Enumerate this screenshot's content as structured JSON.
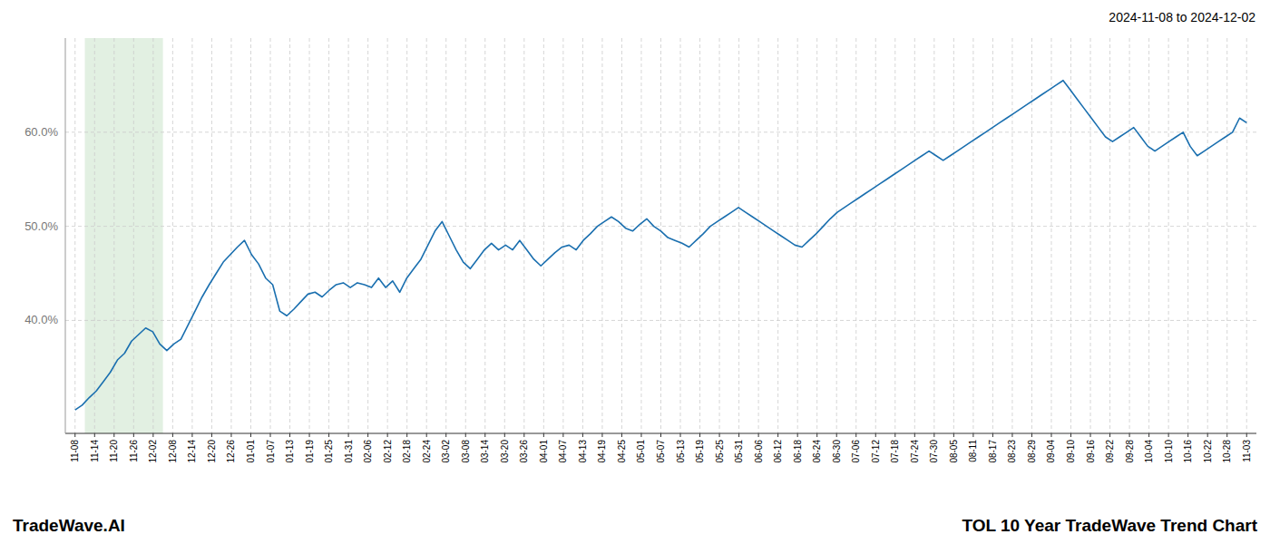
{
  "chart_data": {
    "type": "line",
    "title": "TOL 10 Year TradeWave Trend Chart",
    "subtitle": "2024-11-08 to 2024-12-02",
    "annotations": [
      "TradeWave.AI"
    ],
    "color": "#1a6faf",
    "grid": true,
    "line_style": "solid",
    "highlight": {
      "x": [
        1,
        4
      ],
      "color": "#d6ead6"
    },
    "xlim": [
      -0.5,
      60.5
    ],
    "xticks": [
      {
        "value": 0,
        "label": "11-08"
      },
      {
        "value": 1,
        "label": "11-14"
      },
      {
        "value": 2,
        "label": "11-20"
      },
      {
        "value": 3,
        "label": "11-26"
      },
      {
        "value": 4,
        "label": "12-02"
      },
      {
        "value": 5,
        "label": "12-08"
      },
      {
        "value": 6,
        "label": "12-14"
      },
      {
        "value": 7,
        "label": "12-20"
      },
      {
        "value": 8,
        "label": "12-26"
      },
      {
        "value": 9,
        "label": "01-01"
      },
      {
        "value": 10,
        "label": "01-07"
      },
      {
        "value": 11,
        "label": "01-13"
      },
      {
        "value": 12,
        "label": "01-19"
      },
      {
        "value": 13,
        "label": "01-25"
      },
      {
        "value": 14,
        "label": "01-31"
      },
      {
        "value": 15,
        "label": "02-06"
      },
      {
        "value": 16,
        "label": "02-12"
      },
      {
        "value": 17,
        "label": "02-18"
      },
      {
        "value": 18,
        "label": "02-24"
      },
      {
        "value": 19,
        "label": "03-02"
      },
      {
        "value": 20,
        "label": "03-08"
      },
      {
        "value": 21,
        "label": "03-14"
      },
      {
        "value": 22,
        "label": "03-20"
      },
      {
        "value": 23,
        "label": "03-26"
      },
      {
        "value": 24,
        "label": "04-01"
      },
      {
        "value": 25,
        "label": "04-07"
      },
      {
        "value": 26,
        "label": "04-13"
      },
      {
        "value": 27,
        "label": "04-19"
      },
      {
        "value": 28,
        "label": "04-25"
      },
      {
        "value": 29,
        "label": "05-01"
      },
      {
        "value": 30,
        "label": "05-07"
      },
      {
        "value": 31,
        "label": "05-13"
      },
      {
        "value": 32,
        "label": "05-19"
      },
      {
        "value": 33,
        "label": "05-25"
      },
      {
        "value": 34,
        "label": "05-31"
      },
      {
        "value": 35,
        "label": "06-06"
      },
      {
        "value": 36,
        "label": "06-12"
      },
      {
        "value": 37,
        "label": "06-18"
      },
      {
        "value": 38,
        "label": "06-24"
      },
      {
        "value": 39,
        "label": "06-30"
      },
      {
        "value": 40,
        "label": "07-06"
      },
      {
        "value": 41,
        "label": "07-12"
      },
      {
        "value": 42,
        "label": "07-18"
      },
      {
        "value": 43,
        "label": "07-24"
      },
      {
        "value": 44,
        "label": "07-30"
      },
      {
        "value": 45,
        "label": "08-05"
      },
      {
        "value": 46,
        "label": "08-11"
      },
      {
        "value": 47,
        "label": "08-17"
      },
      {
        "value": 48,
        "label": "08-23"
      },
      {
        "value": 49,
        "label": "08-29"
      },
      {
        "value": 50,
        "label": "09-04"
      },
      {
        "value": 51,
        "label": "09-10"
      },
      {
        "value": 52,
        "label": "09-16"
      },
      {
        "value": 53,
        "label": "09-22"
      },
      {
        "value": 54,
        "label": "09-28"
      },
      {
        "value": 55,
        "label": "10-04"
      },
      {
        "value": 56,
        "label": "10-10"
      },
      {
        "value": 57,
        "label": "10-16"
      },
      {
        "value": 58,
        "label": "10-22"
      },
      {
        "value": 59,
        "label": "10-28"
      },
      {
        "value": 60,
        "label": "11-03"
      }
    ],
    "ylim": [
      28,
      70
    ],
    "yticks": [
      {
        "value": 40.0,
        "label": "40.0%"
      },
      {
        "value": 50.0,
        "label": "50.0%"
      },
      {
        "value": 60.0,
        "label": "60.0%"
      }
    ],
    "values": [
      30.5,
      31.0,
      31.8,
      32.5,
      33.5,
      34.5,
      35.8,
      36.5,
      37.8,
      38.5,
      39.2,
      38.8,
      37.5,
      36.8,
      37.5,
      38.0,
      39.5,
      41.0,
      42.5,
      43.8,
      45.0,
      46.2,
      47.0,
      47.8,
      48.5,
      47.0,
      46.0,
      44.5,
      43.8,
      41.0,
      40.5,
      41.2,
      42.0,
      42.8,
      43.0,
      42.5,
      43.2,
      43.8,
      44.0,
      43.5,
      44.0,
      43.8,
      43.5,
      44.5,
      43.5,
      44.2,
      43.0,
      44.5,
      45.5,
      46.5,
      48.0,
      49.5,
      50.5,
      49.0,
      47.5,
      46.2,
      45.5,
      46.5,
      47.5,
      48.2,
      47.5,
      48.0,
      47.5,
      48.5,
      47.5,
      46.5,
      45.8,
      46.5,
      47.2,
      47.8,
      48.0,
      47.5,
      48.5,
      49.2,
      50.0,
      50.5,
      51.0,
      50.5,
      49.8,
      49.5,
      50.2,
      50.8,
      50.0,
      49.5,
      48.8,
      48.5,
      48.2,
      47.8,
      48.5,
      49.2,
      50.0,
      50.5,
      51.0,
      51.5,
      52.0,
      51.5,
      51.0,
      50.5,
      50.0,
      49.5,
      49.0,
      48.5,
      48.0,
      47.8,
      48.5,
      49.2,
      50.0,
      50.8,
      51.5,
      52.0,
      52.5,
      53.0,
      53.5,
      54.0,
      54.5,
      55.0,
      55.5,
      56.0,
      56.5,
      57.0,
      57.5,
      58.0,
      57.5,
      57.0,
      57.5,
      58.0,
      58.5,
      59.0,
      59.5,
      60.0,
      60.5,
      61.0,
      61.5,
      62.0,
      62.5,
      63.0,
      63.5,
      64.0,
      64.5,
      65.0,
      65.5,
      64.5,
      63.5,
      62.5,
      61.5,
      60.5,
      59.5,
      59.0,
      59.5,
      60.0,
      60.5,
      59.5,
      58.5,
      58.0,
      58.5,
      59.0,
      59.5,
      60.0,
      58.5,
      57.5,
      58.0,
      58.5,
      59.0,
      59.5,
      60.0,
      61.5,
      61.0
    ]
  }
}
